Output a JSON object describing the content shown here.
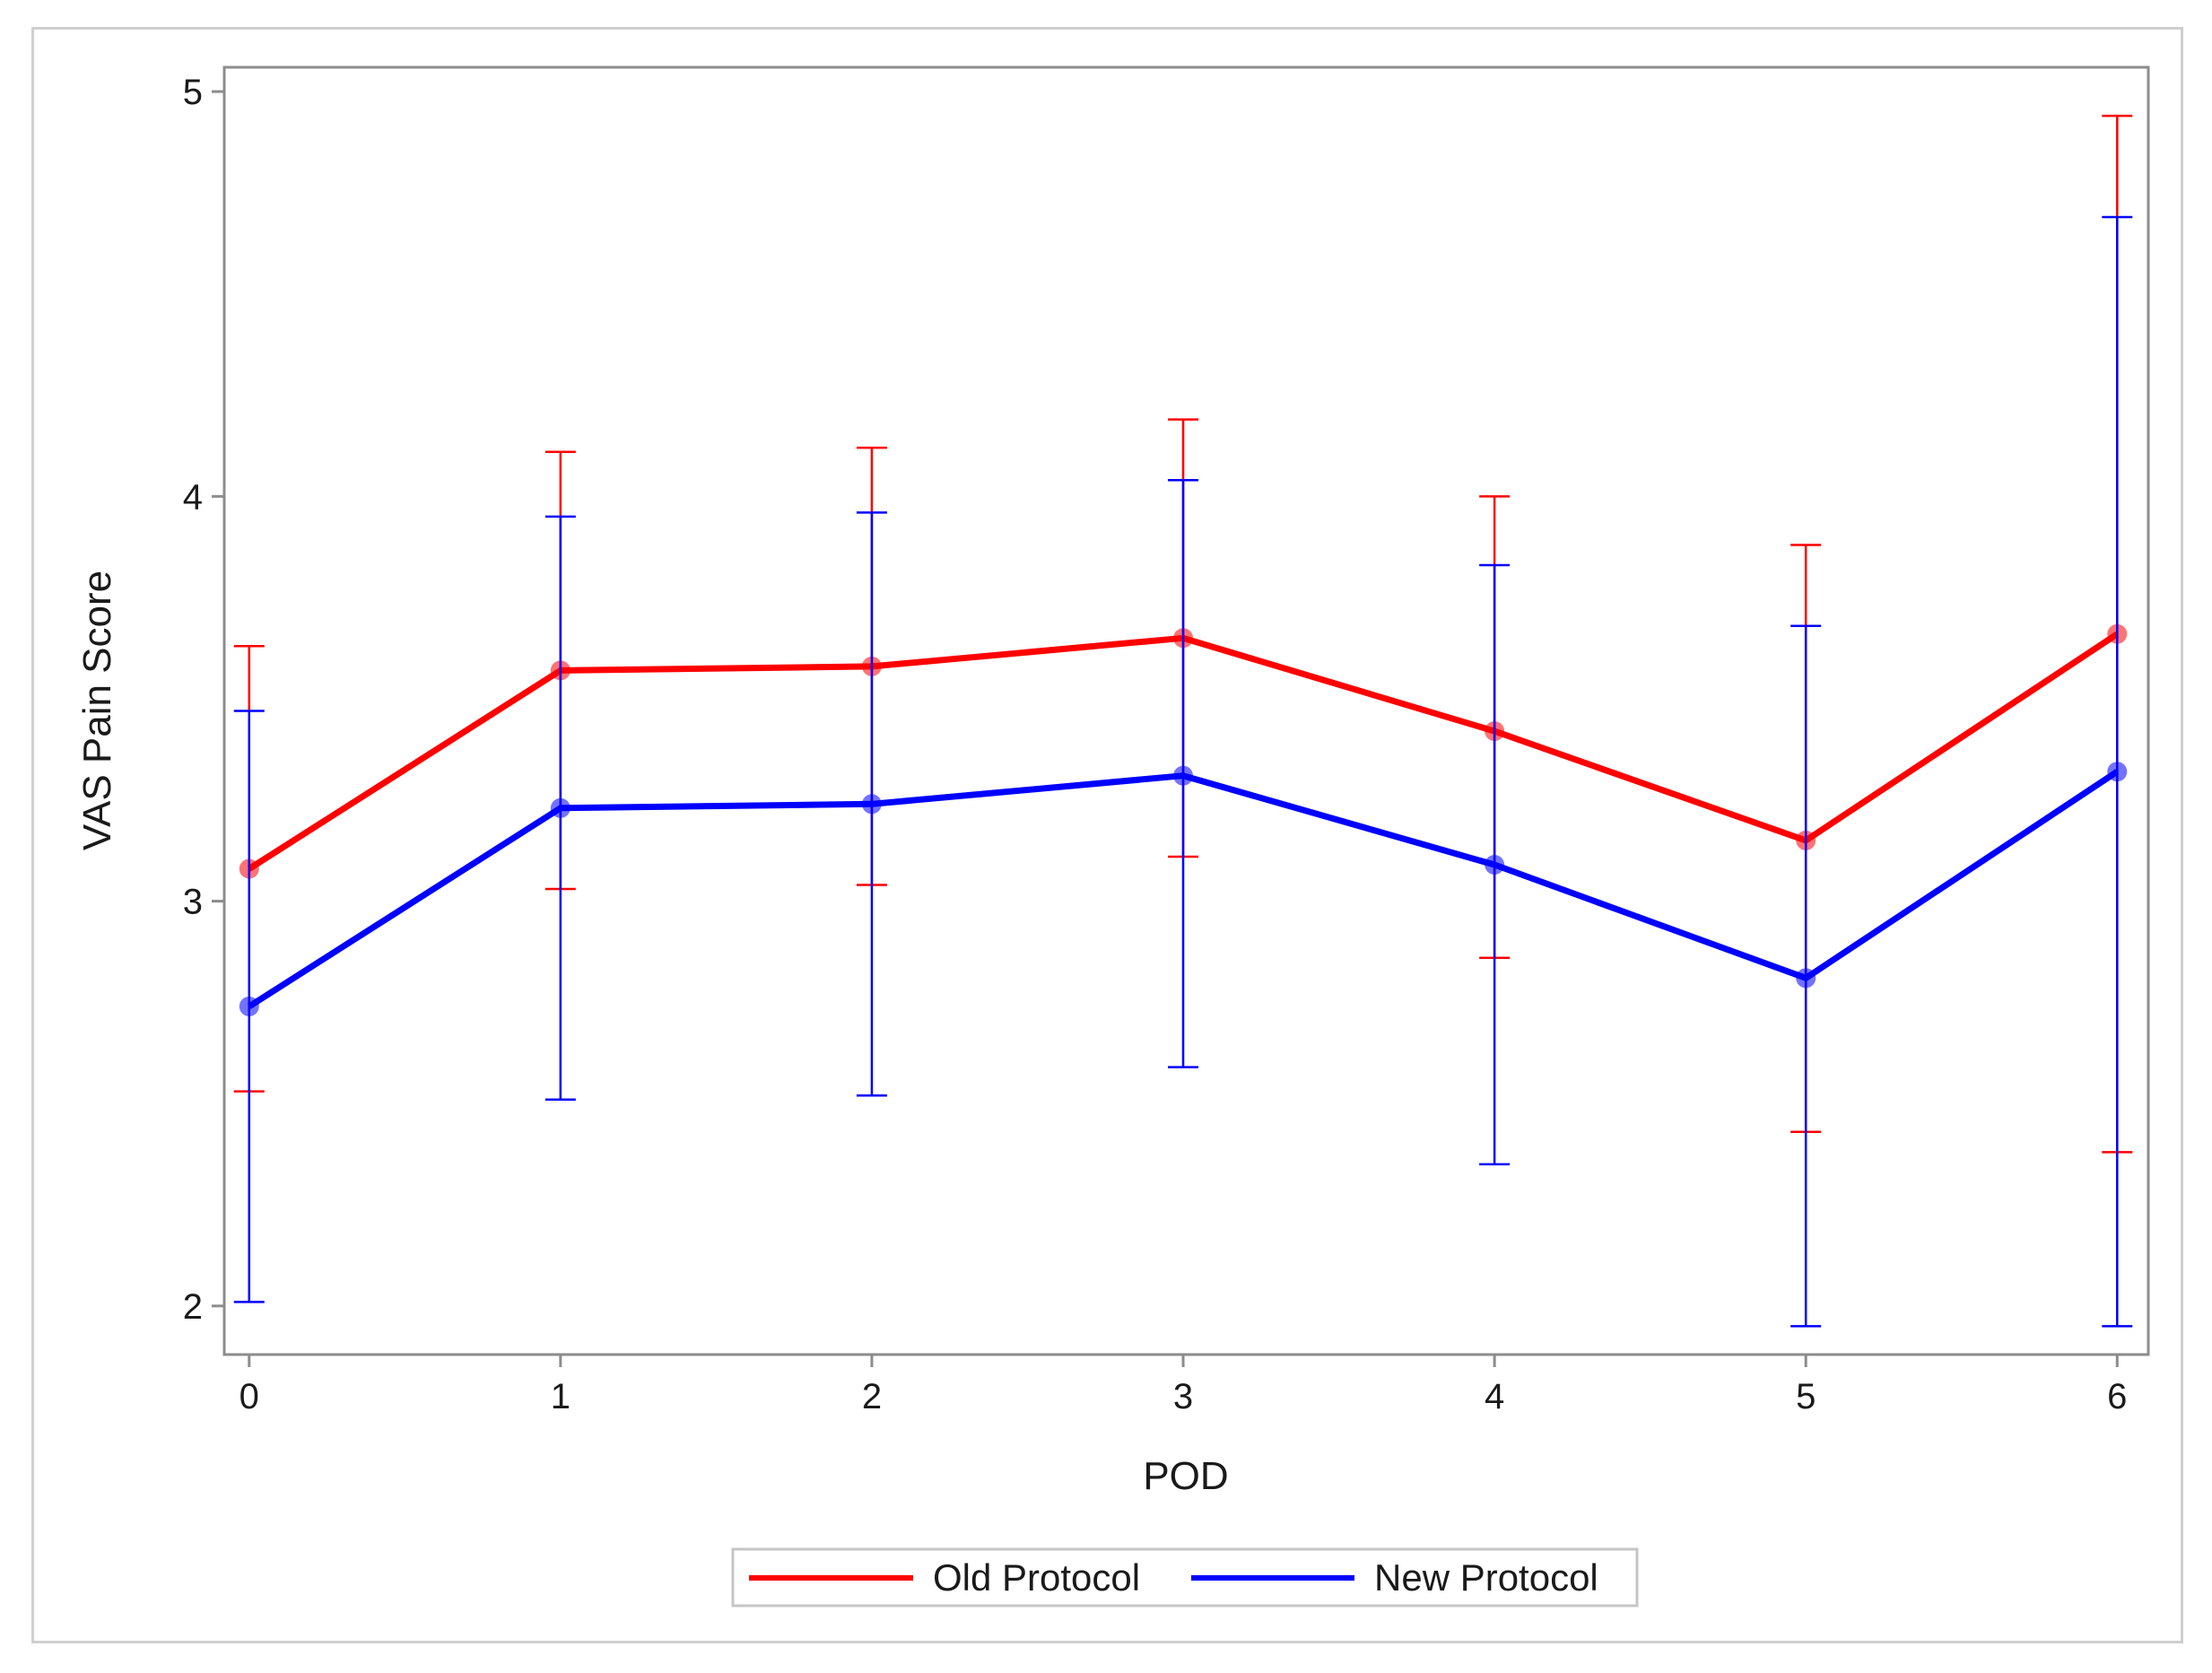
{
  "chart_data": {
    "type": "line",
    "title": "",
    "xlabel": "POD",
    "ylabel": "VAS Pain Score",
    "x": [
      0,
      1,
      2,
      3,
      4,
      5,
      6
    ],
    "xlim": [
      -0.08,
      6.1
    ],
    "ylim": [
      1.88,
      5.06
    ],
    "yticks": [
      2,
      3,
      4,
      5
    ],
    "grid": false,
    "legend_position": "bottom-center",
    "series": [
      {
        "name": "Old Protocol",
        "color": "#ff0000",
        "mean": [
          3.08,
          3.57,
          3.58,
          3.65,
          3.42,
          3.15,
          3.66
        ],
        "lower": [
          2.53,
          3.03,
          3.04,
          3.11,
          2.86,
          2.43,
          2.38
        ],
        "upper": [
          3.63,
          4.11,
          4.12,
          4.19,
          4.0,
          3.88,
          4.94
        ]
      },
      {
        "name": "New Protocol",
        "color": "#0000ff",
        "mean": [
          2.74,
          3.23,
          3.24,
          3.31,
          3.09,
          2.81,
          3.32
        ],
        "lower": [
          2.01,
          2.51,
          2.52,
          2.59,
          2.35,
          1.95,
          1.95
        ],
        "upper": [
          3.47,
          3.95,
          3.96,
          4.04,
          3.83,
          3.68,
          4.69
        ]
      }
    ]
  }
}
